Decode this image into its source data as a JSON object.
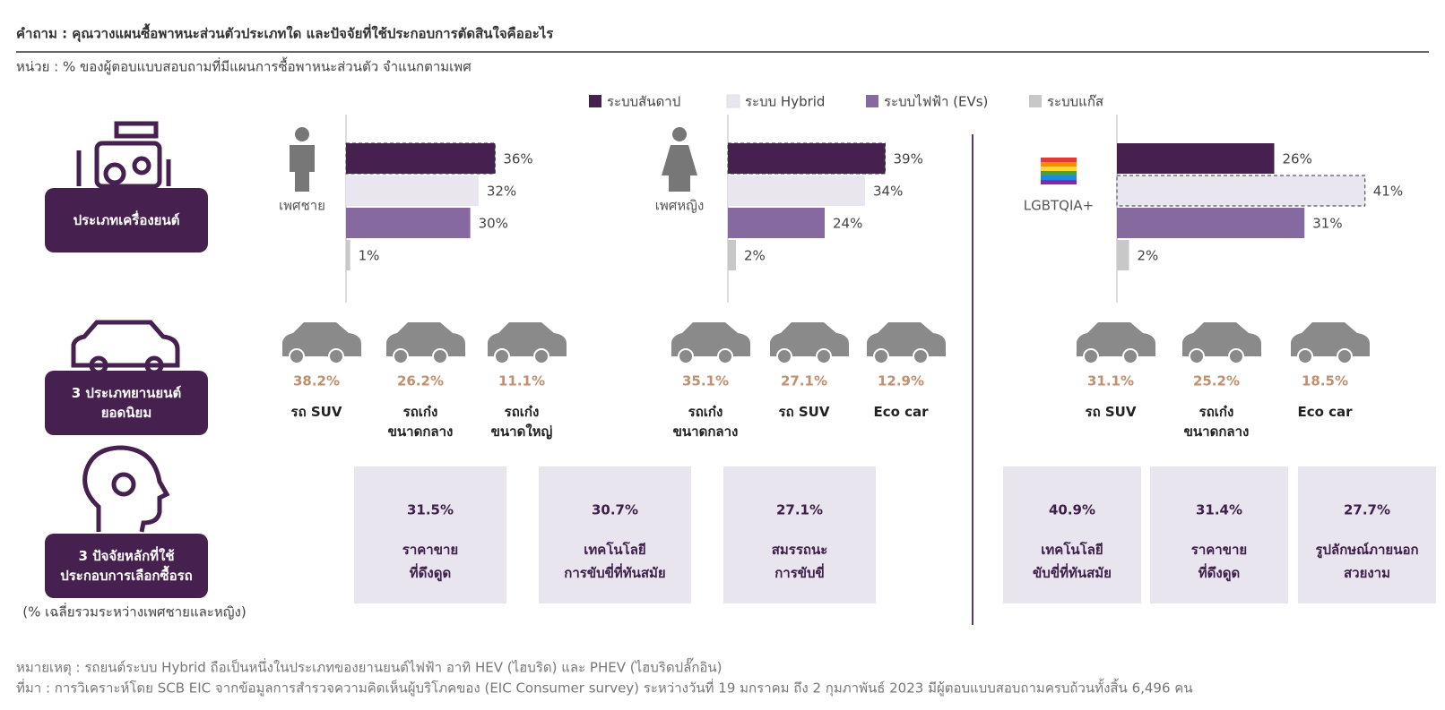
{
  "header": {
    "title": "คำถาม : คุณวางแผนซื้อพาหนะส่วนตัวประเภทใด และปัจจัยที่ใช้ประกอบการตัดสินใจคืออะไร",
    "subtitle": "หน่วย : % ของผู้ตอบแบบสอบถามที่มีแผนการซื้อพาหนะส่วนตัว จำแนกตามเพศ"
  },
  "row_labels": [
    [
      "ประเภทเครื่องยนต์"
    ],
    [
      "3 ประเภทยานยนต์",
      "ยอดนิยม"
    ],
    [
      "3 ปัจจัยหลักที่ใช้",
      "ประกอบการเลือกซื้อรถ"
    ]
  ],
  "factor_note": "(% เฉลี่ยรวมระหว่างเพศชายและหญิง)",
  "chart_data": {
    "type": "bar",
    "orientation": "horizontal",
    "categories": [
      "เพศชาย",
      "เพศหญิง",
      "LGBTQIA+"
    ],
    "series": [
      {
        "name": "ระบบสันดาป",
        "color": "#46214f",
        "values": [
          36,
          39,
          26
        ],
        "value_labels": [
          "36%",
          "39%",
          "26%"
        ]
      },
      {
        "name": "ระบบ Hybrid",
        "color": "#e9e6f0",
        "values": [
          32,
          34,
          41
        ],
        "value_labels": [
          "32%",
          "34%",
          "41%"
        ]
      },
      {
        "name": "ระบบไฟฟ้า (EVs)",
        "color": "#85699f",
        "values": [
          30,
          24,
          31
        ],
        "value_labels": [
          "30%",
          "24%",
          "31%"
        ]
      },
      {
        "name": "ระบบแก๊ส",
        "color": "#c8c8c8",
        "values": [
          1,
          2,
          2
        ],
        "value_labels": [
          "1%",
          "2%",
          "2%"
        ]
      }
    ]
  },
  "popular_cars": [
    [
      {
        "share": "38.2%",
        "name": [
          "รถ SUV"
        ]
      },
      {
        "share": "26.2%",
        "name": [
          "รถเก๋ง",
          "ขนาดกลาง"
        ]
      },
      {
        "share": "11.1%",
        "name": [
          "รถเก๋ง",
          "ขนาดใหญ่"
        ]
      }
    ],
    [
      {
        "share": "35.1%",
        "name": [
          "รถเก๋ง",
          "ขนาดกลาง"
        ]
      },
      {
        "share": "27.1%",
        "name": [
          "รถ SUV"
        ]
      },
      {
        "share": "12.9%",
        "name": [
          "Eco car"
        ]
      }
    ],
    [
      {
        "share": "31.1%",
        "name": [
          "รถ SUV"
        ]
      },
      {
        "share": "25.2%",
        "name": [
          "รถเก๋ง",
          "ขนาดกลาง"
        ]
      },
      {
        "share": "18.5%",
        "name": [
          "Eco car"
        ]
      }
    ]
  ],
  "factors": [
    [
      {
        "share": "31.5%",
        "name": [
          "ราคาขาย",
          "ที่ดึงดูด"
        ]
      },
      {
        "share": "30.7%",
        "name": [
          "เทคโนโลยี",
          "การขับขี่ที่ทันสมัย"
        ]
      },
      {
        "share": "27.1%",
        "name": [
          "สมรรถนะ",
          "การขับขี่"
        ]
      }
    ],
    [
      {
        "share": "40.9%",
        "name": [
          "เทคโนโลยี",
          "ขับขี่ที่ทันสมัย"
        ]
      },
      {
        "share": "31.4%",
        "name": [
          "ราคาขาย",
          "ที่ดึงดูด"
        ]
      },
      {
        "share": "27.7%",
        "name": [
          "รูปลักษณ์ภายนอก",
          "สวยงาม"
        ]
      }
    ]
  ],
  "notes": [
    "หมายเหตุ : รถยนต์ระบบ Hybrid ถือเป็นหนึ่งในประเภทของยานยนต์ไฟฟ้า อาทิ HEV (ไฮบริด) และ PHEV (ไฮบริดปลั๊กอิน)",
    "ที่มา : การวิเคราะห์โดย SCB EIC จากข้อมูลการสำรวจความคิดเห็นผู้บริโภคของ (EIC Consumer survey) ระหว่างวันที่ 19 มกราคม ถึง 2 กุมภาพันธ์ 2023 มีผู้ตอบแบบสอบถามครบถ้วนทั้งสิ้น 6,496 คน"
  ]
}
